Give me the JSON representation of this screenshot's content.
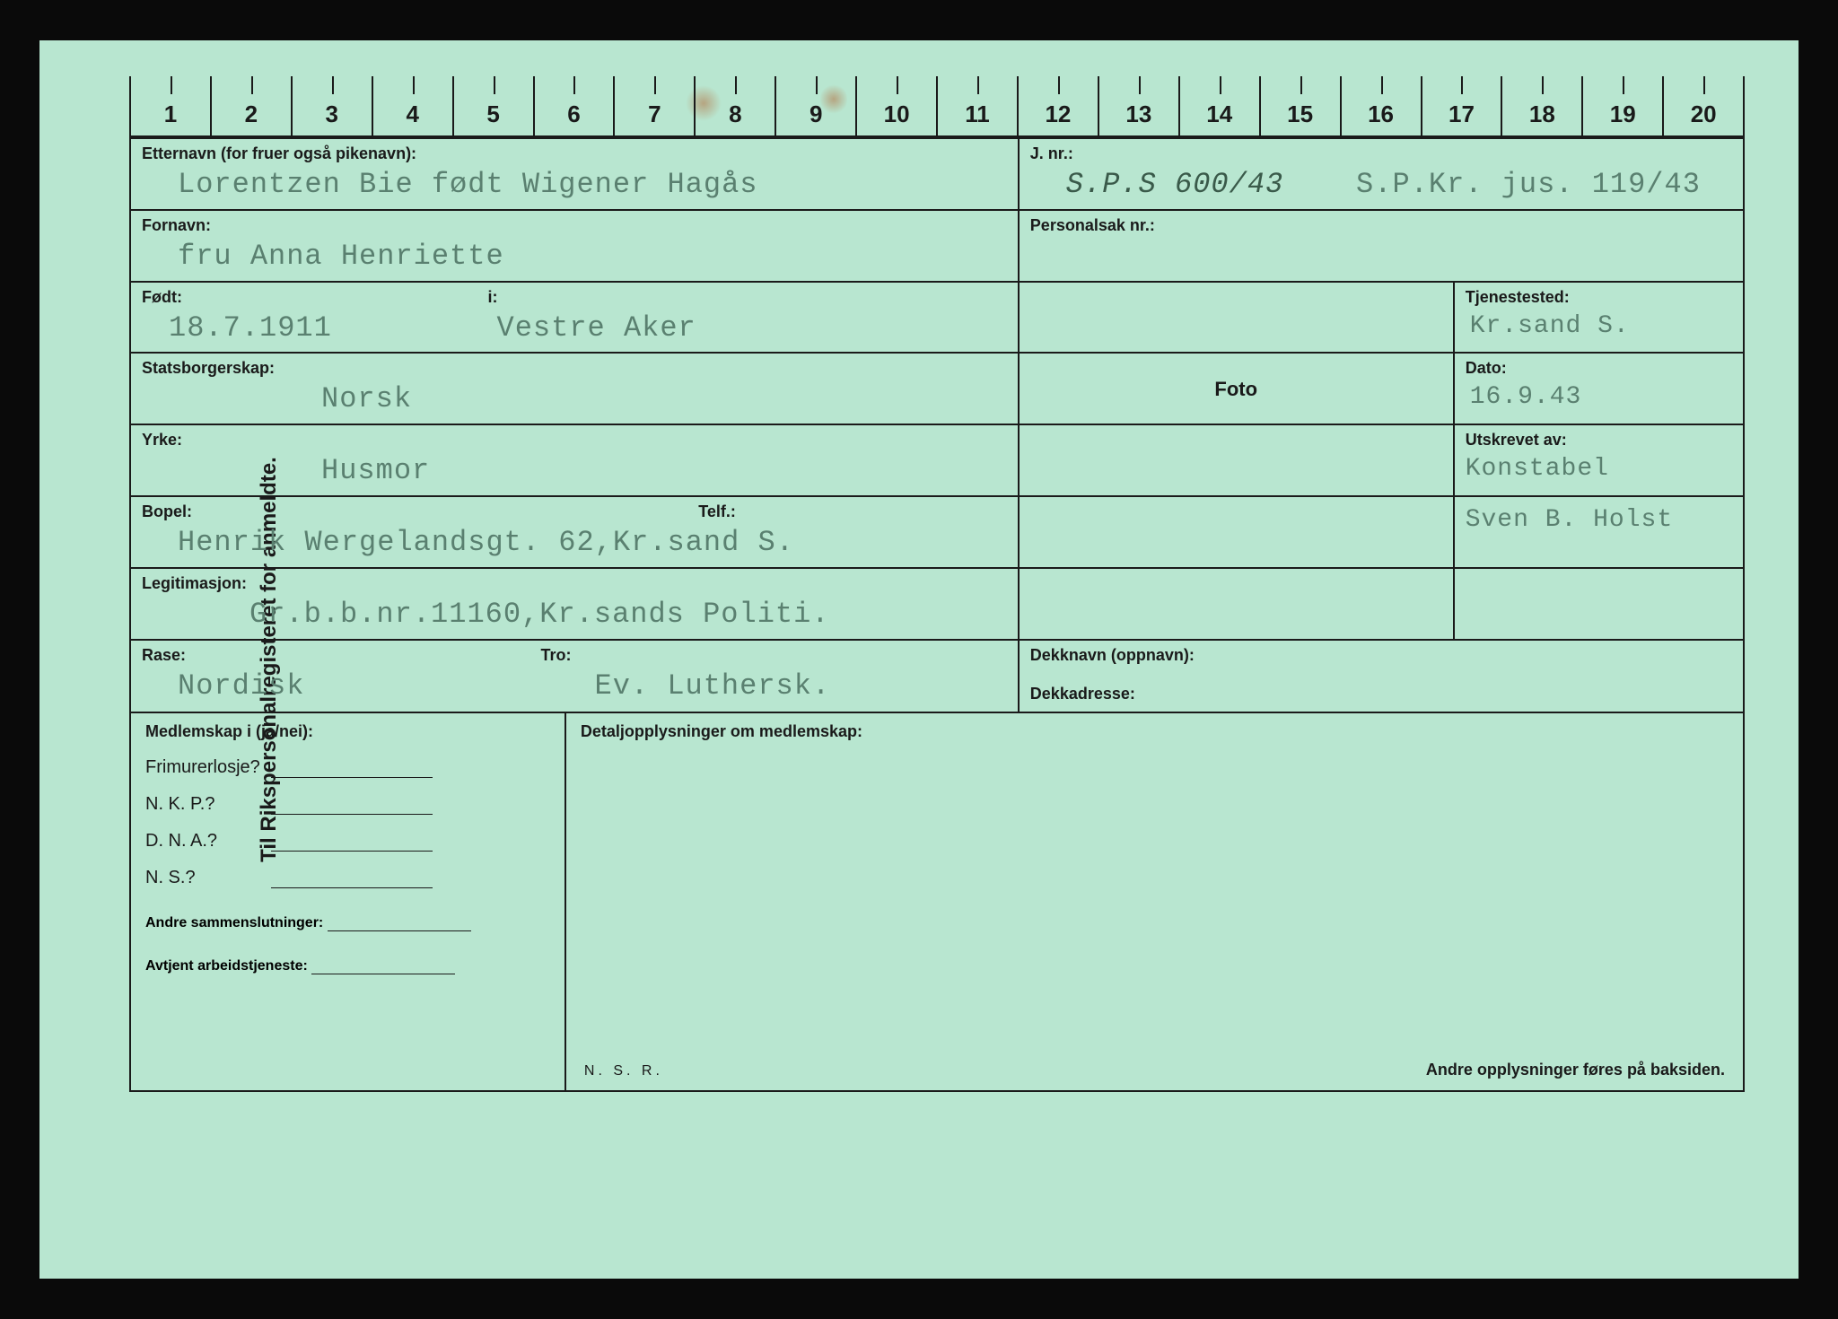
{
  "card": {
    "background_color": "#b8e6d0",
    "typed_text_color": "#5a8070",
    "printed_text_color": "#1a1a1a",
    "border_color": "#1a1a1a",
    "typed_font": "Courier New",
    "printed_font": "Arial",
    "label_fontsize_pt": 14,
    "value_fontsize_pt": 24
  },
  "side_label": "Til Rikspersonalregisteret for anmeldte.",
  "ruler": {
    "start": 1,
    "end": 20
  },
  "labels": {
    "etternavn": "Etternavn (for fruer også pikenavn):",
    "jnr": "J. nr.:",
    "fornavn": "Fornavn:",
    "personalsak": "Personalsak nr.:",
    "fodt": "Født:",
    "i": "i:",
    "tjenestested": "Tjenestested:",
    "statsborgerskap": "Statsborgerskap:",
    "dato": "Dato:",
    "yrke": "Yrke:",
    "foto": "Foto",
    "bopel": "Bopel:",
    "telf": "Telf.:",
    "utskrevet": "Utskrevet av:",
    "legitimasjon": "Legitimasjon:",
    "rase": "Rase:",
    "tro": "Tro:",
    "dekknavn": "Dekknavn (oppnavn):",
    "dekkadresse": "Dekkadresse:",
    "medlemskap": "Medlemskap i (ja/nei):",
    "detaljopp": "Detaljopplysninger om medlemskap:",
    "frimurer": "Frimurerlosje?",
    "nkp": "N. K. P.?",
    "dna": "D. N. A.?",
    "ns": "N. S.?",
    "andre_samm": "Andre sammenslutninger:",
    "avtjent": "Avtjent arbeidstjeneste:",
    "nsr": "N. S. R.",
    "footer": "Andre opplysninger føres på baksiden."
  },
  "values": {
    "etternavn": "Lorentzen Bie født Wigener Hagås",
    "jnr_hand": "S.P.S 600/43",
    "jnr_typed": "S.P.Kr. jus. 119/43",
    "fornavn": "fru Anna Henriette",
    "personalsak": "",
    "fodt": "18.7.1911",
    "fodt_i": "Vestre Aker",
    "tjenestested": "Kr.sand S.",
    "statsborgerskap": "Norsk",
    "dato": "16.9.43",
    "yrke": "Husmor",
    "bopel": "Henrik Wergelandsgt. 62,Kr.sand S.",
    "utskrevet_1": "Konstabel",
    "utskrevet_2": "Sven B. Holst",
    "legitimasjon": "Gr.b.b.nr.11160,Kr.sands Politi.",
    "rase": "Nordisk",
    "tro": "Ev. Luthersk.",
    "dekknavn": "",
    "dekkadresse": "",
    "frimurer": "",
    "nkp": "",
    "dna": "",
    "ns": "",
    "andre_samm": "",
    "avtjent": ""
  }
}
